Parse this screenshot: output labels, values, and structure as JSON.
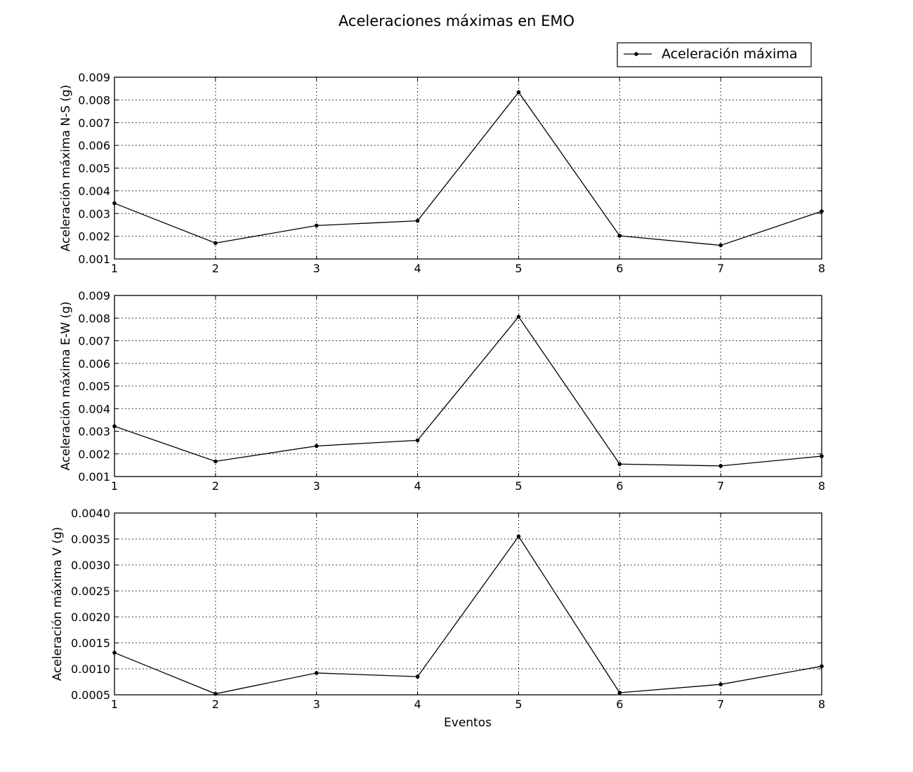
{
  "chart_data": {
    "type": "line",
    "title": "Aceleraciones máximas en EMO",
    "legend": {
      "placement": "top-right",
      "entries": [
        "Aceleración máxima"
      ]
    },
    "x": [
      1,
      2,
      3,
      4,
      5,
      6,
      7,
      8
    ],
    "xlabel": "Eventos",
    "xticks": [
      "1",
      "2",
      "3",
      "4",
      "5",
      "6",
      "7",
      "8"
    ],
    "xlim": [
      1,
      8
    ],
    "grid": true,
    "colors": {
      "line": "#000000",
      "marker": "#000000"
    },
    "subplots": [
      {
        "ylabel": "Aceleración máxima N-S (g)",
        "ylim": [
          0.001,
          0.009
        ],
        "yticks": [
          "0.001",
          "0.002",
          "0.003",
          "0.004",
          "0.005",
          "0.006",
          "0.007",
          "0.008",
          "0.009"
        ],
        "series": [
          {
            "name": "Aceleración máxima",
            "values": [
              0.00345,
              0.0017,
              0.00247,
              0.00268,
              0.00834,
              0.00202,
              0.0016,
              0.0031
            ]
          }
        ]
      },
      {
        "ylabel": "Aceleración máxima E-W (g)",
        "ylim": [
          0.001,
          0.009
        ],
        "yticks": [
          "0.001",
          "0.002",
          "0.003",
          "0.004",
          "0.005",
          "0.006",
          "0.007",
          "0.008",
          "0.009"
        ],
        "series": [
          {
            "name": "Aceleración máxima",
            "values": [
              0.00322,
              0.00167,
              0.00235,
              0.0026,
              0.00806,
              0.00155,
              0.00147,
              0.0019
            ]
          }
        ]
      },
      {
        "ylabel": "Aceleración máxima V (g)",
        "ylim": [
          0.0005,
          0.004
        ],
        "yticks": [
          "0.0005",
          "0.0010",
          "0.0015",
          "0.0020",
          "0.0025",
          "0.0030",
          "0.0035",
          "0.0040"
        ],
        "series": [
          {
            "name": "Aceleración máxima",
            "values": [
              0.00131,
              0.00052,
              0.00092,
              0.00085,
              0.00355,
              0.00054,
              0.0007,
              0.00105
            ]
          }
        ]
      }
    ]
  }
}
